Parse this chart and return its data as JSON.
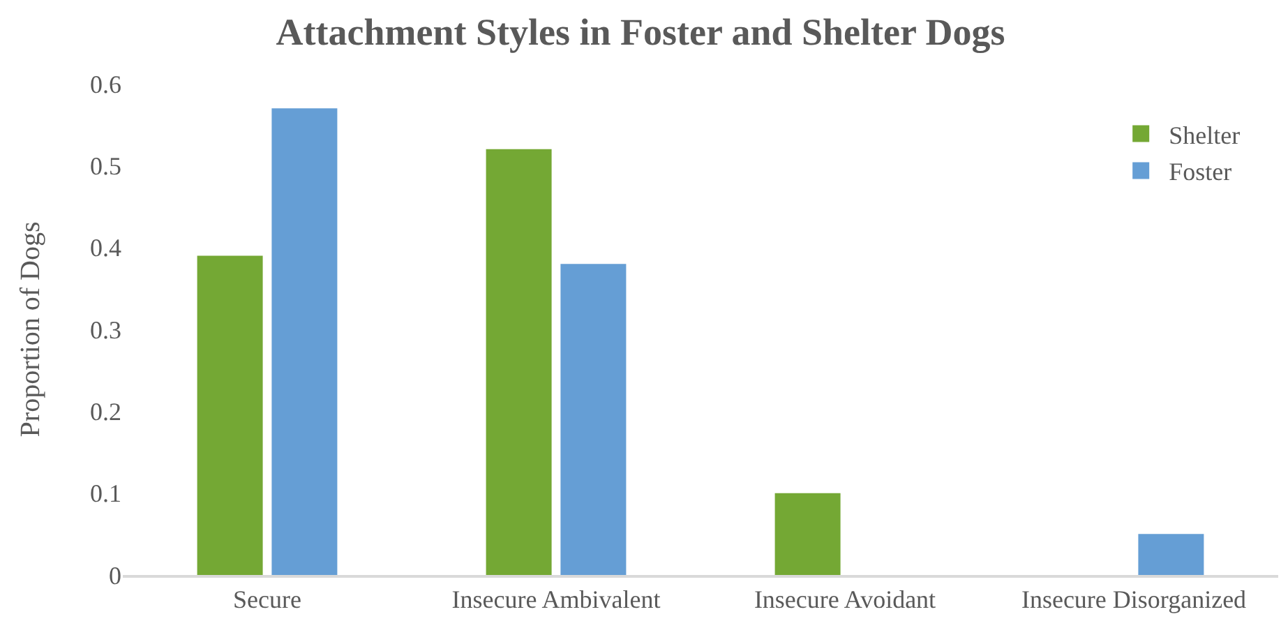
{
  "chart_data": {
    "type": "bar",
    "title": "Attachment Styles in Foster and Shelter Dogs",
    "ylabel": "Proportion of Dogs",
    "categories": [
      "Secure",
      "Insecure Ambivalent",
      "Insecure Avoidant",
      "Insecure Disorganized"
    ],
    "series": [
      {
        "name": "Shelter",
        "color": "#74a834",
        "values": [
          0.39,
          0.52,
          0.1,
          0
        ]
      },
      {
        "name": "Foster",
        "color": "#659ed5",
        "values": [
          0.57,
          0.38,
          0,
          0.05
        ]
      }
    ],
    "ylim": [
      0,
      0.6
    ],
    "yticks": [
      0,
      0.1,
      0.2,
      0.3,
      0.4,
      0.5,
      0.6
    ],
    "grid": false,
    "legend": "top right"
  }
}
